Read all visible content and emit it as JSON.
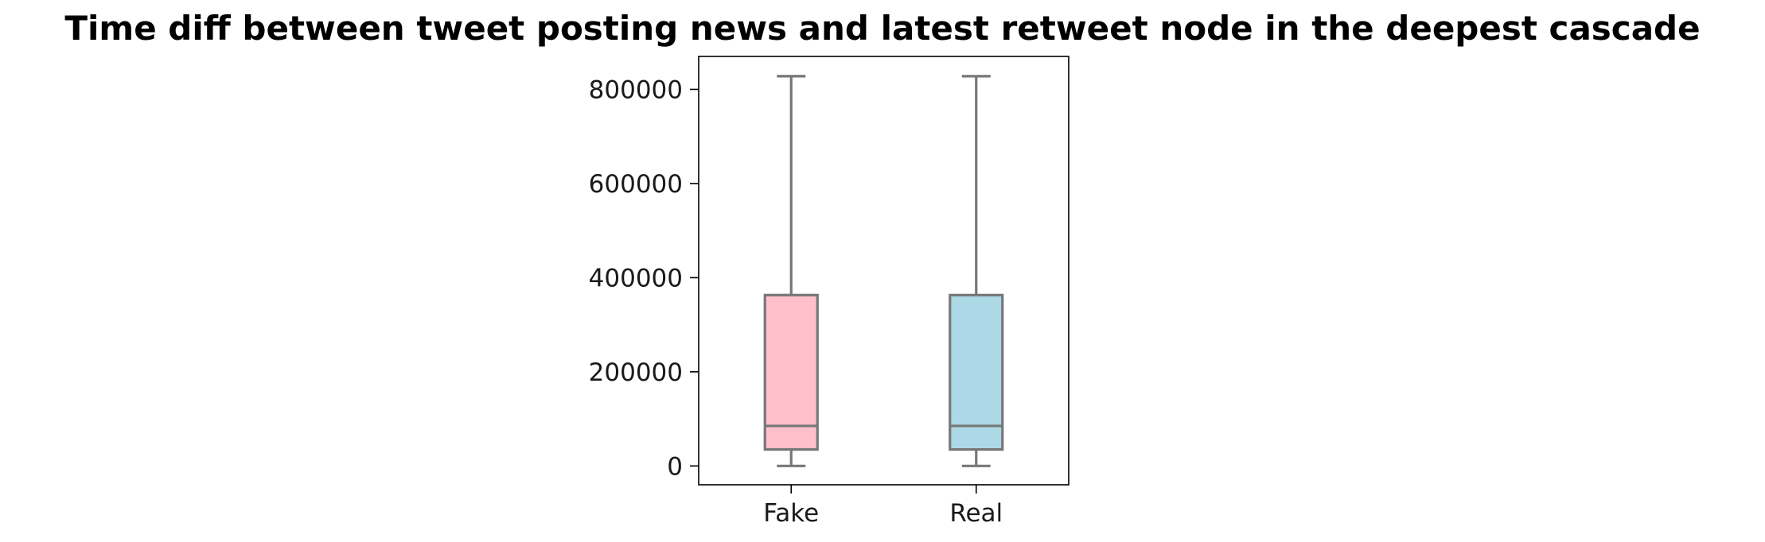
{
  "chart_data": {
    "type": "box",
    "title": "Time diff between tweet posting news and latest retweet node in the deepest cascade",
    "xlabel": "",
    "ylabel": "",
    "categories": [
      "Fake",
      "Real"
    ],
    "ylim": [
      -40000,
      870000
    ],
    "yticks": [
      0,
      200000,
      400000,
      600000,
      800000
    ],
    "ytick_labels": [
      "0",
      "200000",
      "400000",
      "600000",
      "800000"
    ],
    "grid": false,
    "legend": "none",
    "boxes": [
      {
        "category": "Fake",
        "whisker_low": 0,
        "q1": 35000,
        "median": 85000,
        "q3": 363000,
        "whisker_high": 828000,
        "color": "#ffc0cb"
      },
      {
        "category": "Real",
        "whisker_low": 0,
        "q1": 35000,
        "median": 85000,
        "q3": 363000,
        "whisker_high": 828000,
        "color": "#add8e6"
      }
    ],
    "line_color": "#777777"
  }
}
